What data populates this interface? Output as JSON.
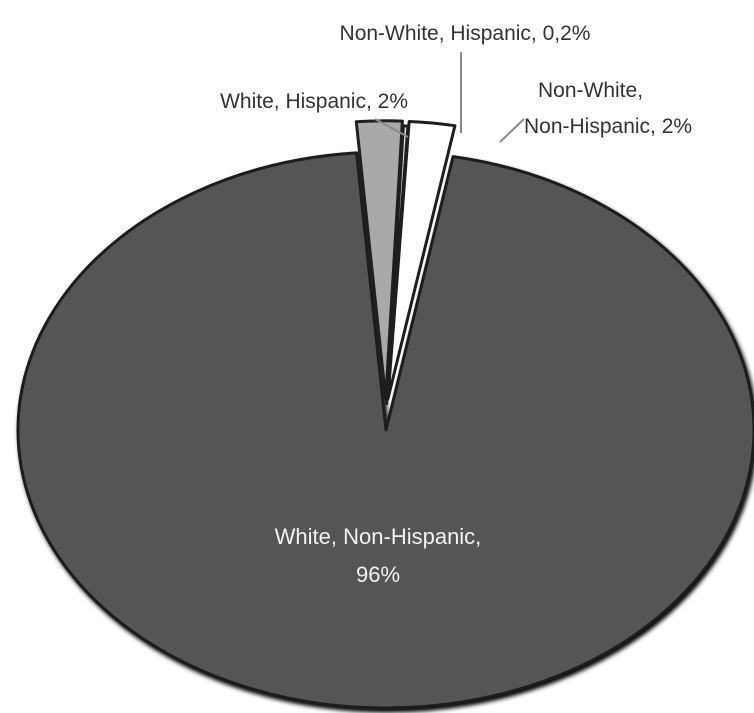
{
  "chart_data": {
    "type": "pie",
    "title": "",
    "slices": [
      {
        "label": "White, Non-Hispanic",
        "value_text": "96%",
        "value": 96,
        "color": "#555555"
      },
      {
        "label": "White, Hispanic",
        "value_text": "2%",
        "value": 2,
        "color": "#a9a9a9"
      },
      {
        "label": "Non-White, Hispanic",
        "value_text": "0,2%",
        "value": 0.2,
        "color": "#dcdcdc"
      },
      {
        "label": "Non-White, Non-Hispanic",
        "value_text": "2%",
        "value": 2,
        "color": "#ffffff"
      }
    ],
    "label_lines": {
      "white_non_hispanic": [
        "White, Non-Hispanic,",
        "96%"
      ],
      "white_hispanic": "White, Hispanic, 2%",
      "non_white_hispanic": "Non-White, Hispanic, 0,2%",
      "non_white_non_hispanic": [
        "Non-White,",
        "Non-Hispanic, 2%"
      ]
    },
    "legend": "none"
  }
}
